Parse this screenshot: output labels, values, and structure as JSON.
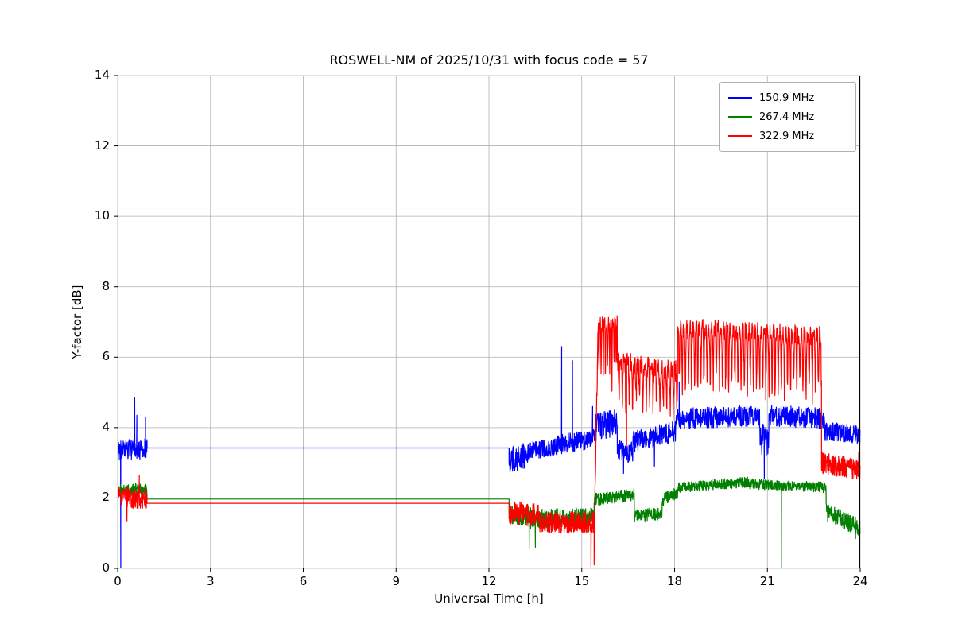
{
  "chart_data": {
    "type": "line",
    "title": "ROSWELL-NM of 2025/10/31 with focus code = 57",
    "xlabel": "Universal Time [h]",
    "ylabel": "Y-factor [dB]",
    "xlim": [
      0,
      24
    ],
    "ylim": [
      0,
      14
    ],
    "xticks": [
      0,
      3,
      6,
      9,
      12,
      15,
      18,
      21,
      24
    ],
    "yticks": [
      0,
      2,
      4,
      6,
      8,
      10,
      12,
      14
    ],
    "grid": true,
    "grid_color": "#b0b0b0",
    "background": "#ffffff",
    "legend_position": "top-right",
    "series": [
      {
        "name": "150.9 MHz",
        "color": "#0000ff",
        "segments": [
          {
            "x0": 0.02,
            "x1": 0.95,
            "y0": 3.35,
            "y1": 3.4,
            "noise": 0.3,
            "spikes": [
              [
                0.1,
                0.02
              ],
              [
                0.55,
                4.85
              ],
              [
                0.62,
                4.35
              ],
              [
                0.9,
                4.3
              ]
            ]
          },
          {
            "x0": 0.95,
            "x1": 12.65,
            "y0": 3.42,
            "y1": 3.42,
            "noise": 0
          },
          {
            "x0": 12.65,
            "x1": 13.3,
            "y0": 3.1,
            "y1": 3.2,
            "noise": 0.38
          },
          {
            "x0": 13.3,
            "x1": 14.2,
            "y0": 3.35,
            "y1": 3.45,
            "noise": 0.25
          },
          {
            "x0": 14.2,
            "x1": 15.45,
            "y0": 3.5,
            "y1": 3.7,
            "noise": 0.28,
            "spikes": [
              [
                14.35,
                6.3
              ],
              [
                14.7,
                5.9
              ],
              [
                15.35,
                4.6
              ]
            ]
          },
          {
            "x0": 15.45,
            "x1": 16.15,
            "y0": 4.0,
            "y1": 4.15,
            "noise": 0.4
          },
          {
            "x0": 16.15,
            "x1": 16.65,
            "y0": 3.35,
            "y1": 3.3,
            "noise": 0.3,
            "spikes": [
              [
                16.35,
                2.7
              ]
            ]
          },
          {
            "x0": 16.65,
            "x1": 18.05,
            "y0": 3.6,
            "y1": 3.9,
            "noise": 0.3,
            "spikes": [
              [
                17.35,
                2.9
              ]
            ]
          },
          {
            "x0": 18.05,
            "x1": 20.75,
            "y0": 4.25,
            "y1": 4.35,
            "noise": 0.3,
            "spikes": [
              [
                18.15,
                5.3
              ]
            ]
          },
          {
            "x0": 20.75,
            "x1": 21.05,
            "y0": 3.7,
            "y1": 3.6,
            "noise": 0.45,
            "spikes": [
              [
                20.9,
                2.55
              ]
            ]
          },
          {
            "x0": 21.05,
            "x1": 22.85,
            "y0": 4.35,
            "y1": 4.25,
            "noise": 0.3
          },
          {
            "x0": 22.85,
            "x1": 24.0,
            "y0": 3.9,
            "y1": 3.8,
            "noise": 0.27
          }
        ]
      },
      {
        "name": "267.4 MHz",
        "color": "#008000",
        "segments": [
          {
            "x0": 0.02,
            "x1": 0.95,
            "y0": 2.2,
            "y1": 2.25,
            "noise": 0.18
          },
          {
            "x0": 0.95,
            "x1": 12.65,
            "y0": 1.97,
            "y1": 1.97,
            "noise": 0
          },
          {
            "x0": 12.65,
            "x1": 13.35,
            "y0": 1.55,
            "y1": 1.5,
            "noise": 0.3,
            "spikes": [
              [
                13.3,
                0.55
              ]
            ]
          },
          {
            "x0": 13.35,
            "x1": 15.4,
            "y0": 1.4,
            "y1": 1.45,
            "noise": 0.28,
            "spikes": [
              [
                13.5,
                0.6
              ]
            ]
          },
          {
            "x0": 15.4,
            "x1": 16.7,
            "y0": 1.95,
            "y1": 2.1,
            "noise": 0.18
          },
          {
            "x0": 16.7,
            "x1": 17.6,
            "y0": 1.5,
            "y1": 1.55,
            "noise": 0.18
          },
          {
            "x0": 17.6,
            "x1": 18.1,
            "y0": 1.95,
            "y1": 2.15,
            "noise": 0.18
          },
          {
            "x0": 18.1,
            "x1": 20.4,
            "y0": 2.3,
            "y1": 2.45,
            "noise": 0.15
          },
          {
            "x0": 20.4,
            "x1": 22.9,
            "y0": 2.4,
            "y1": 2.3,
            "noise": 0.15,
            "spikes": [
              [
                21.45,
                0.02
              ]
            ]
          },
          {
            "x0": 22.9,
            "x1": 24.0,
            "y0": 1.6,
            "y1": 1.15,
            "noise": 0.25,
            "spikes": [
              [
                23.85,
                0.85
              ]
            ]
          }
        ]
      },
      {
        "name": "322.9 MHz",
        "color": "#ff0000",
        "segments": [
          {
            "x0": 0.02,
            "x1": 0.95,
            "y0": 2.0,
            "y1": 2.0,
            "noise": 0.3,
            "spikes": [
              [
                0.3,
                1.35
              ],
              [
                0.7,
                2.65
              ]
            ]
          },
          {
            "x0": 0.95,
            "x1": 12.65,
            "y0": 1.85,
            "y1": 1.85,
            "noise": 0
          },
          {
            "x0": 12.65,
            "x1": 13.6,
            "y0": 1.6,
            "y1": 1.5,
            "noise": 0.33
          },
          {
            "x0": 13.6,
            "x1": 15.42,
            "y0": 1.3,
            "y1": 1.3,
            "noise": 0.3,
            "spikes": [
              [
                15.3,
                0.05
              ],
              [
                15.4,
                0.1
              ]
            ]
          },
          {
            "x0": 15.42,
            "x1": 15.52,
            "y0": 1.8,
            "y1": 6.4,
            "noise": 0.3
          },
          {
            "x0": 15.52,
            "x1": 16.15,
            "y0": 6.9,
            "y1": 7.0,
            "noise": 0.22,
            "comb": {
              "period": 0.07,
              "depth": 1.8
            }
          },
          {
            "x0": 16.15,
            "x1": 18.1,
            "y0": 5.9,
            "y1": 5.6,
            "noise": 0.3,
            "comb": {
              "period": 0.11,
              "depth": 1.3
            },
            "spikes": [
              [
                16.45,
                3.5
              ],
              [
                17.95,
                4.2
              ]
            ]
          },
          {
            "x0": 18.1,
            "x1": 22.75,
            "y0": 6.85,
            "y1": 6.6,
            "noise": 0.28,
            "comb": {
              "period": 0.1,
              "depth": 2.0
            }
          },
          {
            "x0": 22.75,
            "x1": 24.0,
            "y0": 3.0,
            "y1": 2.8,
            "noise": 0.3,
            "spikes": [
              [
                23.95,
                3.3
              ]
            ]
          }
        ]
      }
    ]
  }
}
